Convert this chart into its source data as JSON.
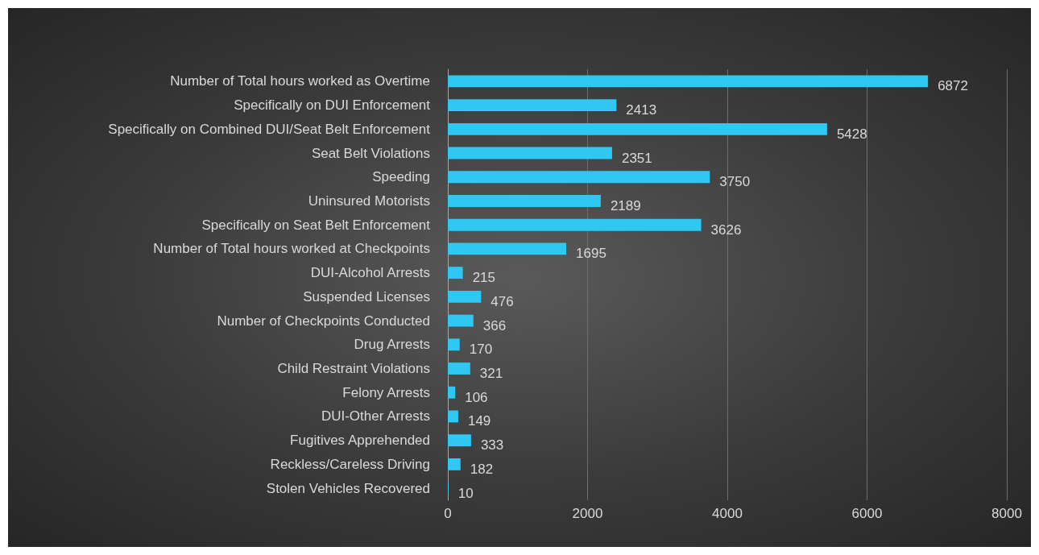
{
  "chart_data": {
    "type": "bar",
    "orientation": "horizontal",
    "categories": [
      "Number of Total hours worked as Overtime",
      "Specifically on DUI Enforcement",
      "Specifically on Combined DUI/Seat Belt Enforcement",
      "Seat Belt Violations",
      "Speeding",
      "Uninsured Motorists",
      "Specifically on Seat Belt Enforcement",
      "Number of Total hours worked at Checkpoints",
      "DUI-Alcohol Arrests",
      "Suspended Licenses",
      "Number of Checkpoints Conducted",
      "Drug Arrests",
      "Child Restraint Violations",
      "Felony Arrests",
      "DUI-Other Arrests",
      "Fugitives Apprehended",
      "Reckless/Careless Driving",
      "Stolen Vehicles Recovered"
    ],
    "values": [
      6872,
      2413,
      5428,
      2351,
      3750,
      2189,
      3626,
      1695,
      215,
      476,
      366,
      170,
      321,
      106,
      149,
      333,
      182,
      10
    ],
    "color": "#2ec8f2",
    "xlim": [
      0,
      8000
    ],
    "xticks": [
      0,
      2000,
      4000,
      6000,
      8000
    ],
    "grid": "x",
    "data_labels": true
  }
}
